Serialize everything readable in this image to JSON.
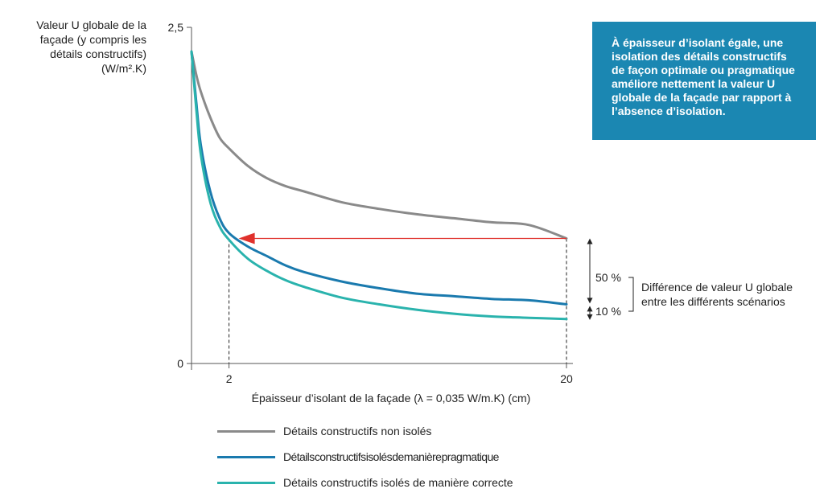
{
  "chart_data": {
    "type": "line",
    "ylabel_lines": [
      "Valeur U globale de la",
      "façade (y compris les",
      "détails constructifs)",
      "(W/m².K)"
    ],
    "xlabel": "Épaisseur d’isolant de la façade (λ = 0,035 W/m.K) (cm)",
    "y_ticks": [
      "2,5",
      "0"
    ],
    "x_ticks": [
      "2",
      "20"
    ],
    "ylim": [
      0,
      2.5
    ],
    "xlim": [
      0,
      20
    ],
    "x": [
      0,
      0.25,
      0.5,
      1,
      1.5,
      2,
      3,
      4,
      5,
      6,
      8,
      10,
      12,
      14,
      16,
      18,
      20
    ],
    "series": [
      {
        "name": "Détails constructifs non isolés",
        "color": "#8a8a8a",
        "values": [
          2.32,
          2.15,
          2.02,
          1.83,
          1.68,
          1.6,
          1.47,
          1.38,
          1.32,
          1.28,
          1.2,
          1.15,
          1.11,
          1.08,
          1.05,
          1.03,
          0.93
        ]
      },
      {
        "name": "Détails constructifs isolés de manière pragmatique",
        "color": "#1a7aae",
        "values": [
          2.32,
          1.95,
          1.62,
          1.28,
          1.08,
          0.97,
          0.87,
          0.8,
          0.73,
          0.68,
          0.61,
          0.56,
          0.52,
          0.5,
          0.48,
          0.47,
          0.44
        ]
      },
      {
        "name": "Détails constructifs isolés de manière correcte",
        "color": "#2ab3ad",
        "values": [
          2.32,
          1.9,
          1.55,
          1.2,
          1.02,
          0.92,
          0.78,
          0.69,
          0.62,
          0.57,
          0.49,
          0.44,
          0.4,
          0.37,
          0.35,
          0.34,
          0.33
        ]
      }
    ],
    "reference_arrow": {
      "from_x": 20,
      "to_x": 2,
      "y": 0.93,
      "color": "#e0312c"
    },
    "guides": [
      {
        "x": 2,
        "y": 0.93
      },
      {
        "x": 20,
        "y": 0.93
      }
    ],
    "difference_markers": {
      "labels": [
        "50 %",
        "10 %"
      ],
      "levels": [
        0.93,
        0.44,
        0.33
      ]
    },
    "annotation": "Différence de valeur U globale entre les différents scénarios",
    "callout": "À épaisseur d’isolant égale, une isolation des détails constructifs de façon optimale ou pragmatique améliore nettement la valeur U globale de la façade par rapport à l’absence d’isolation."
  },
  "legend": [
    {
      "label": "Détails constructifs non isolés",
      "color": "#8a8a8a",
      "tight": false
    },
    {
      "label": "Détails constructifs isolés de manière pragmatique",
      "color": "#1a7aae",
      "tight": true
    },
    {
      "label": "Détails constructifs isolés de manière correcte",
      "color": "#2ab3ad",
      "tight": false
    }
  ]
}
